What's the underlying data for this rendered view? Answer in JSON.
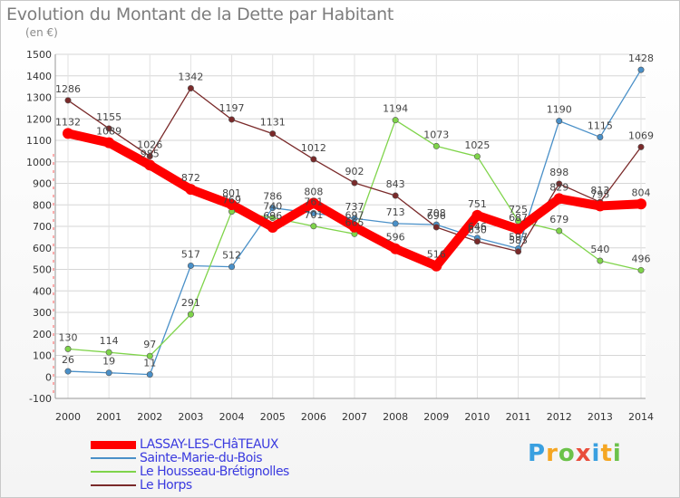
{
  "title": "Evolution du Montant de la Dette par Habitant",
  "unit": "(en €)",
  "brand": {
    "letters": [
      "P",
      "r",
      "o",
      "x",
      "i",
      "t",
      "i"
    ],
    "colors": [
      "#3aa0e0",
      "#f5a623",
      "#6cc24a",
      "#e94e3c",
      "#3aa0e0",
      "#f5a623",
      "#6cc24a"
    ]
  },
  "chart_data": {
    "type": "line",
    "title": "Evolution du Montant de la Dette par Habitant",
    "ylabel": "(en €)",
    "xlabel": "",
    "x": [
      2000,
      2001,
      2002,
      2003,
      2004,
      2005,
      2006,
      2007,
      2008,
      2009,
      2010,
      2011,
      2012,
      2013,
      2014
    ],
    "xtick_labels": [
      "2000",
      "2001",
      "2002",
      "2003",
      "2004",
      "2005",
      "2006",
      "2007",
      "2008",
      "2009",
      "2010",
      "2011",
      "2012",
      "2013",
      "2014"
    ],
    "ylim": [
      -100,
      1500
    ],
    "yticks": [
      -100,
      0,
      100,
      200,
      300,
      400,
      500,
      600,
      700,
      800,
      900,
      1000,
      1100,
      1200,
      1300,
      1400,
      1500
    ],
    "ytick_labels": [
      "-100",
      "0",
      "100",
      "200",
      "300",
      "400",
      "500",
      "600",
      "700",
      "800",
      "900",
      "1000",
      "1100",
      "1200",
      "1300",
      "1400",
      "1500"
    ],
    "grid": true,
    "legend": "bottom",
    "series": [
      {
        "name": "LASSAY-LES-CHâTEAUX",
        "color": "#ff0000",
        "values": [
          1132,
          1089,
          985,
          872,
          801,
          696,
          808,
          697,
          596,
          516,
          751,
          687,
          829,
          795,
          804
        ],
        "labels": [
          "1132",
          "1089",
          "985",
          "872",
          "801",
          "696",
          "808",
          "697",
          "596",
          "516",
          "751",
          "687",
          "829",
          "795",
          "804"
        ]
      },
      {
        "name": "Sainte-Marie-du-Bois",
        "color": "#4a90c8",
        "values": [
          26,
          19,
          11,
          517,
          512,
          786,
          761,
          737,
          713,
          708,
          646,
          597,
          1190,
          1115,
          1428
        ],
        "labels": [
          "26",
          "19",
          "11",
          "517",
          "512",
          "786",
          "761",
          "737",
          "713",
          "708",
          "646",
          "597",
          "1190",
          "1115",
          "1428"
        ]
      },
      {
        "name": "Le Housseau-Brétignolles",
        "color": "#7fd44a",
        "values": [
          130,
          114,
          97,
          291,
          769,
          740,
          701,
          665,
          1194,
          1073,
          1025,
          725,
          679,
          540,
          496
        ],
        "labels": [
          "130",
          "114",
          "97",
          "291",
          "769",
          "740",
          "701",
          "665",
          "1194",
          "1073",
          "1025",
          "725",
          "679",
          "540",
          "496"
        ]
      },
      {
        "name": "Le Horps",
        "color": "#7a2a2a",
        "values": [
          1286,
          1155,
          1026,
          1342,
          1197,
          1131,
          1012,
          902,
          843,
          696,
          630,
          583,
          898,
          813,
          1069
        ],
        "labels": [
          "1286",
          "1155",
          "1026",
          "1342",
          "1197",
          "1131",
          "1012",
          "902",
          "843",
          "696",
          "630",
          "583",
          "898",
          "813",
          "1069"
        ]
      }
    ]
  }
}
